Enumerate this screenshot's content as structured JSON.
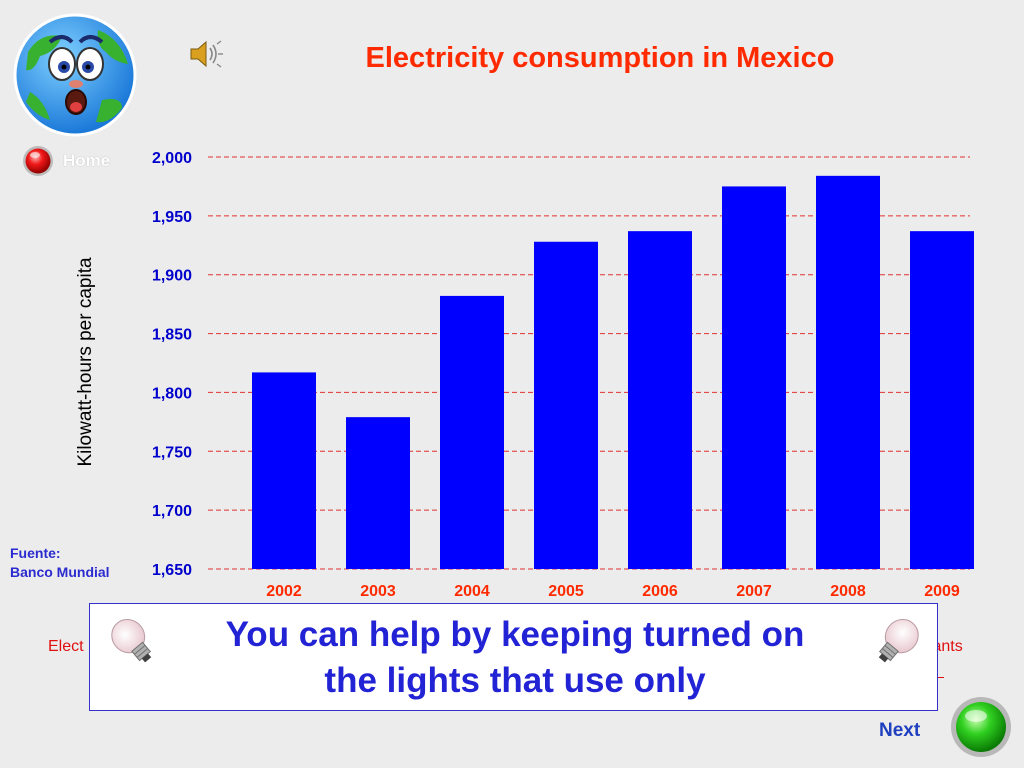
{
  "header": {
    "title": "Electricity consumption in Mexico"
  },
  "nav": {
    "home_label": "Home",
    "next_label": "Next"
  },
  "source": {
    "line1": "Fuente:",
    "line2": "Banco Mundial"
  },
  "message": {
    "line1": "You can help by keeping turned on",
    "line2": "the lights that use only"
  },
  "partial_text": {
    "left": "Elect",
    "right": "plants"
  },
  "icons": {
    "mascot": "earth-mascot-icon",
    "speaker": "speaker-icon",
    "home_ball": "red-button-icon",
    "next_ball": "green-button-icon",
    "bulb": "light-bulb-icon"
  },
  "colors": {
    "title": "#ff2a00",
    "bar": "#0000ff",
    "year_labels": "#ff2a00",
    "tick_labels": "#0000cc",
    "gridlines": "#e03030",
    "message_text": "#2323d6"
  },
  "chart_data": {
    "type": "bar",
    "title": "Electricity consumption in Mexico",
    "xlabel": "",
    "ylabel": "Kilowatt-hours per capita",
    "categories": [
      "2002",
      "2003",
      "2004",
      "2005",
      "2006",
      "2007",
      "2008",
      "2009"
    ],
    "values": [
      1817,
      1779,
      1882,
      1928,
      1937,
      1975,
      1984,
      1937
    ],
    "ylim": [
      1650,
      2000
    ],
    "yticks": [
      1650,
      1700,
      1750,
      1800,
      1850,
      1900,
      1950,
      2000
    ],
    "ytick_labels": [
      "1,650",
      "1,700",
      "1,750",
      "1,800",
      "1,850",
      "1,900",
      "1,950",
      "2,000"
    ],
    "grid": true,
    "grid_style": "dashed"
  }
}
